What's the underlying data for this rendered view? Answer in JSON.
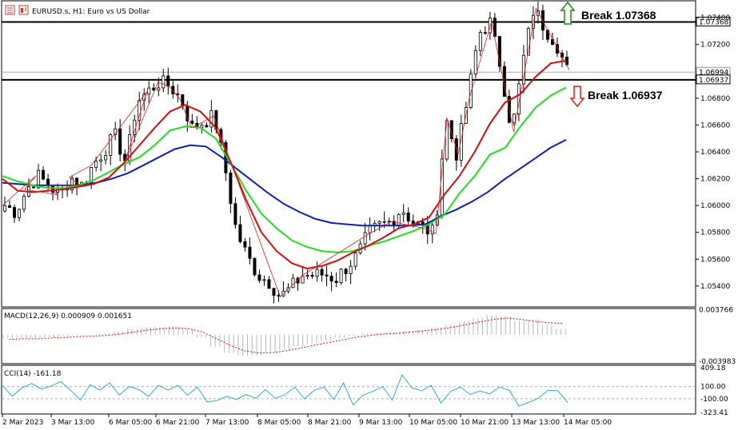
{
  "header": {
    "symbol": "EURUSD.s, H1:  Euro vs US Dollar"
  },
  "colors": {
    "bull": "#1a7a1a",
    "bear": "#000000",
    "ma_fast": "#d01010",
    "ma_mid": "#22dd22",
    "ma_slow": "#1020b0",
    "macd_hist": "#b8b8b8",
    "macd_signal": "#d01010",
    "cci": "#33aacc",
    "zigzag": "#e02020"
  },
  "annotations": {
    "break_up": "Break 1.07368",
    "break_down": "Break 1.06937"
  },
  "chart_data": [
    {
      "type": "candlestick",
      "panel": "main",
      "ylim": [
        1.0525,
        1.0752
      ],
      "yticks": [
        "1.07400",
        "1.07200",
        "1.06800",
        "1.06600",
        "1.06400",
        "1.06200",
        "1.06000",
        "1.05800",
        "1.05600",
        "1.05400"
      ],
      "ytick_values": [
        1.074,
        1.072,
        1.068,
        1.066,
        1.064,
        1.062,
        1.06,
        1.058,
        1.056,
        1.054
      ],
      "price_labels": [
        {
          "text": "1.07368",
          "value": 1.07368,
          "style": "line"
        },
        {
          "text": "1.06994",
          "value": 1.06994,
          "style": "current"
        },
        {
          "text": "1.06937",
          "value": 1.06937,
          "style": "line"
        }
      ],
      "key_prices": [
        1.06,
        1.0595,
        1.0612,
        1.0622,
        1.0615,
        1.0608,
        1.0621,
        1.0615,
        1.063,
        1.0641,
        1.0652,
        1.0632,
        1.0678,
        1.0685,
        1.0692,
        1.0689,
        1.0679,
        1.0658,
        1.0662,
        1.0667,
        1.0627,
        1.0581,
        1.0562,
        1.0548,
        1.0543,
        1.0532,
        1.0539,
        1.0548,
        1.0548,
        1.0549,
        1.0545,
        1.0554,
        1.0563,
        1.0579,
        1.0585,
        1.0588,
        1.0598,
        1.0588,
        1.0583,
        1.0579,
        1.0665,
        1.0638,
        1.068,
        1.0728,
        1.0737,
        1.0703,
        1.0655,
        1.0707,
        1.0747,
        1.0732,
        1.0722,
        1.0701
      ],
      "xticks": [
        "2 Mar 2023",
        "3 Mar 13:00",
        "6 Mar 05:00",
        "6 Mar 21:00",
        "7 Mar 13:00",
        "8 Mar 05:00",
        "8 Mar 21:00",
        "9 Mar 13:00",
        "10 Mar 05:00",
        "10 Mar 21:00",
        "13 Mar 13:00",
        "14 Mar 05:00"
      ],
      "ma_fast": [
        1.062,
        1.0611,
        1.061,
        1.0611,
        1.0612,
        1.0614,
        1.0616,
        1.0621,
        1.0632,
        1.0645,
        1.0658,
        1.067,
        1.0675,
        1.067,
        1.0658,
        1.0632,
        1.0604,
        1.058,
        1.0566,
        1.0557,
        1.0553,
        1.0555,
        1.0559,
        1.0565,
        1.057,
        1.0576,
        1.0583,
        1.0586,
        1.0591,
        1.0608,
        1.0622,
        1.064,
        1.0661,
        1.0677,
        1.0683,
        1.0696,
        1.0706,
        1.0708
      ],
      "ma_mid": [
        1.0622,
        1.0618,
        1.0615,
        1.0613,
        1.0613,
        1.0615,
        1.0619,
        1.0625,
        1.0631,
        1.0636,
        1.0645,
        1.0656,
        1.0659,
        1.0658,
        1.065,
        1.0631,
        1.0611,
        1.0594,
        1.0583,
        1.0574,
        1.0569,
        1.0566,
        1.0565,
        1.0566,
        1.057,
        1.0573,
        1.0577,
        1.0581,
        1.0586,
        1.0593,
        1.0609,
        1.0622,
        1.0638,
        1.0643,
        1.0659,
        1.0673,
        1.0682,
        1.0688
      ],
      "ma_slow": [
        1.0617,
        1.0616,
        1.0615,
        1.0615,
        1.0615,
        1.0615,
        1.0617,
        1.062,
        1.0624,
        1.063,
        1.0636,
        1.0642,
        1.0645,
        1.0644,
        1.0636,
        1.0627,
        1.0618,
        1.0609,
        1.0601,
        1.0595,
        1.059,
        1.0587,
        1.0586,
        1.0585,
        1.0585,
        1.0585,
        1.0585,
        1.0586,
        1.0592,
        1.0597,
        1.0603,
        1.061,
        1.0619,
        1.0627,
        1.0635,
        1.0643,
        1.0649
      ]
    },
    {
      "type": "histogram",
      "panel": "macd",
      "label": "MACD(12,26,9) 0.000909 0.001651",
      "yticks": [
        "0.003766",
        "-0.003983"
      ],
      "ytick_values": [
        0.003766,
        -0.003983
      ],
      "ylim": [
        -0.0042,
        0.0038
      ],
      "histogram": [
        -0.0006,
        -0.0005,
        -0.0005,
        -0.0004,
        -0.0003,
        -0.0002,
        0.0,
        0.0002,
        0.0005,
        0.0008,
        0.0011,
        0.0012,
        0.0012,
        0.0008,
        -0.0004,
        -0.0018,
        -0.0027,
        -0.0031,
        -0.0031,
        -0.0027,
        -0.0022,
        -0.0017,
        -0.0013,
        -0.0009,
        -0.0005,
        -0.0002,
        0.0002,
        0.0003,
        0.0004,
        0.0006,
        0.0007,
        0.0011,
        0.0015,
        0.002,
        0.0025,
        0.0029,
        0.0027,
        0.0021,
        0.0023,
        0.0015,
        0.0009
      ],
      "signal": [
        -0.0007,
        -0.0006,
        -0.0006,
        -0.0005,
        -0.0004,
        -0.0003,
        -0.0002,
        -0.0001,
        0.0001,
        0.0004,
        0.0007,
        0.0009,
        0.001,
        0.0009,
        0.0004,
        -0.0006,
        -0.0016,
        -0.0024,
        -0.0027,
        -0.0027,
        -0.0024,
        -0.002,
        -0.0016,
        -0.0012,
        -0.0008,
        -0.0004,
        -0.0001,
        0.0001,
        0.0002,
        0.0004,
        0.0006,
        0.0008,
        0.0011,
        0.0015,
        0.0019,
        0.0023,
        0.0025,
        0.0023,
        0.002,
        0.0018,
        0.0017
      ]
    },
    {
      "type": "line",
      "panel": "cci",
      "label": "CCI(14) -161.18",
      "yticks": [
        "409.18",
        "100.00",
        "-100.00",
        "-323.41"
      ],
      "ytick_values": [
        409.18,
        100,
        -100,
        -323.41
      ],
      "ylim": [
        -323.41,
        409.18
      ],
      "values": [
        120,
        -60,
        80,
        150,
        60,
        110,
        180,
        40,
        -120,
        130,
        40,
        160,
        -40,
        100,
        50,
        -60,
        120,
        40,
        120,
        -40,
        90,
        -150,
        -130,
        -60,
        -110,
        -30,
        -90,
        50,
        -90,
        -30,
        90,
        -100,
        40,
        90,
        -110,
        160,
        -200,
        -40,
        20,
        100,
        -120,
        290,
        80,
        30,
        120,
        -170,
        20,
        90,
        -30,
        30,
        -20,
        90,
        40,
        -220,
        -160,
        -90,
        40,
        30,
        -161
      ]
    }
  ]
}
